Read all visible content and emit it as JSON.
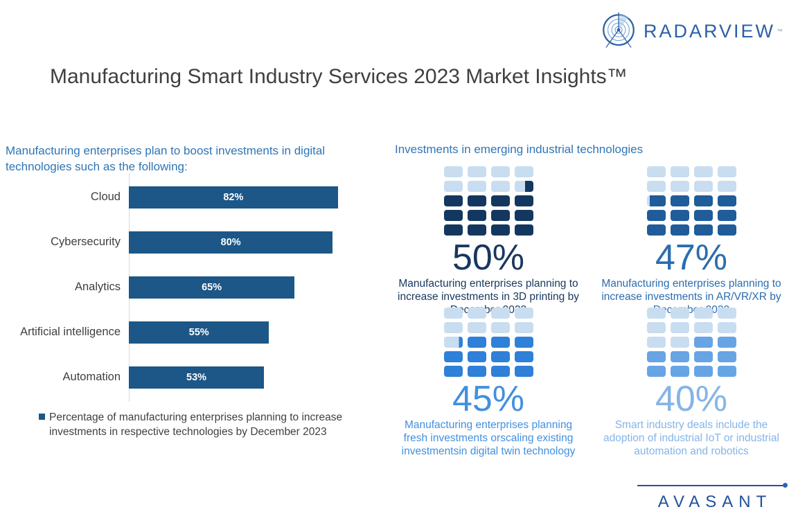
{
  "brand": {
    "radarview": {
      "text": "RADARVIEW",
      "tm": "™",
      "color": "#2B5FA6"
    },
    "avasant": {
      "text": "AVASANT",
      "color": "#24509B"
    }
  },
  "page": {
    "title": "Manufacturing Smart Industry Services 2023 Market Insights™"
  },
  "chart_data": [
    {
      "type": "bar",
      "orientation": "horizontal",
      "title": "Manufacturing enterprises plan to boost investments in digital technologies such as the following:",
      "categories": [
        "Cloud",
        "Cybersecurity",
        "Analytics",
        "Artificial intelligence",
        "Automation"
      ],
      "values": [
        82,
        80,
        65,
        55,
        53
      ],
      "value_labels": [
        "82%",
        "80%",
        "65%",
        "55%",
        "53%"
      ],
      "xlim": [
        0,
        100
      ],
      "bar_color": "#1C5787",
      "grid": false,
      "legend_position": "bottom",
      "legend_label": "Percentage of manufacturing enterprises planning to increase investments in respective technologies by December 2023"
    },
    {
      "type": "waffle-set",
      "title": "Investments in emerging industrial technologies",
      "rows": 5,
      "cols": 4,
      "items": [
        {
          "value": 50,
          "value_label": "50%",
          "caption": "Manufacturing enterprises planning to increase investments in 3D printing by December 2023",
          "fill_color": "#14375F",
          "empty_color": "#C9DDF1",
          "text_color": "#17375E",
          "cells": [
            [
              0,
              0,
              0,
              0
            ],
            [
              0,
              0,
              0,
              0.45
            ],
            [
              1,
              1,
              1,
              1
            ],
            [
              1,
              1,
              1,
              1
            ],
            [
              1,
              1,
              1,
              1
            ]
          ]
        },
        {
          "value": 47,
          "value_label": "47%",
          "caption": "Manufacturing enterprises planning to increase investments in AR/VR/XR by December 2023",
          "fill_color": "#1F5C99",
          "empty_color": "#C9DDF1",
          "text_color": "#2B6CAD",
          "cells": [
            [
              0,
              0,
              0,
              0
            ],
            [
              0,
              0,
              0,
              0
            ],
            [
              0.85,
              1,
              1,
              1
            ],
            [
              1,
              1,
              1,
              1
            ],
            [
              1,
              1,
              1,
              1
            ]
          ]
        },
        {
          "value": 45,
          "value_label": "45%",
          "caption": "Manufacturing enterprises planning fresh investments orscaling existing investmentsin digital twin technology",
          "fill_color": "#2F80D8",
          "empty_color": "#C9DDF1",
          "text_color": "#4190DE",
          "cells": [
            [
              0,
              0,
              0,
              0
            ],
            [
              0,
              0,
              0,
              0
            ],
            [
              0.2,
              1,
              1,
              1
            ],
            [
              1,
              1,
              1,
              1
            ],
            [
              1,
              1,
              1,
              1
            ]
          ]
        },
        {
          "value": 40,
          "value_label": "40%",
          "caption": "Smart industry deals include the adoption of industrial IoT or industrial automation and robotics",
          "fill_color": "#67A4E4",
          "empty_color": "#C9DDF1",
          "text_color": "#84B4E8",
          "cells": [
            [
              0,
              0,
              0,
              0
            ],
            [
              0,
              0,
              0,
              0
            ],
            [
              0,
              0,
              1,
              1
            ],
            [
              1,
              1,
              1,
              1
            ],
            [
              1,
              1,
              1,
              1
            ]
          ]
        }
      ]
    }
  ]
}
